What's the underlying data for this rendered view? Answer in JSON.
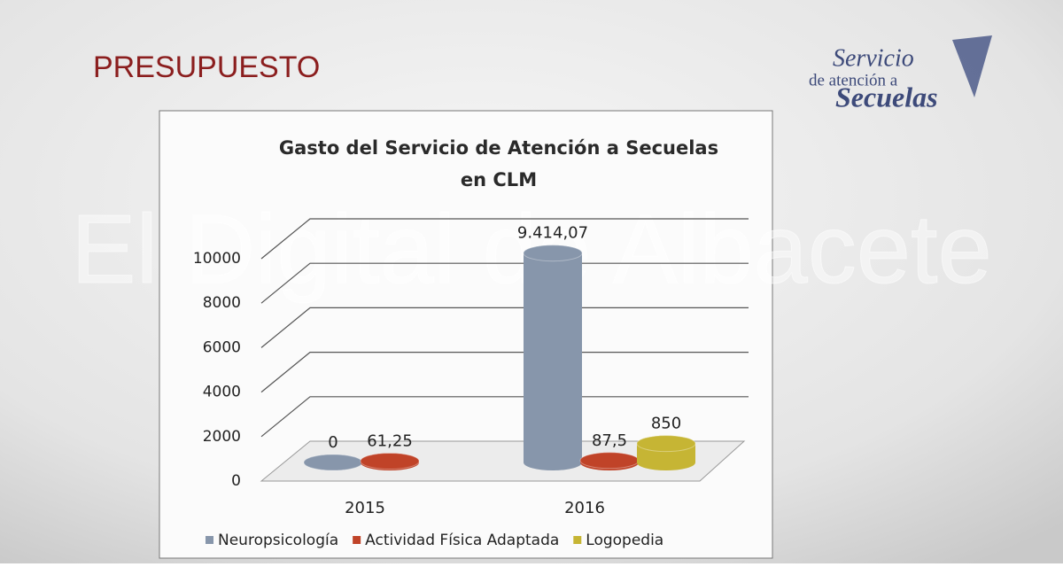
{
  "slide": {
    "title": "PRESUPUESTO",
    "logo": [
      "Servicio",
      "de atención a",
      "Secuelas"
    ],
    "watermark": "El Digital de Albacete"
  },
  "chart_data": {
    "type": "bar3d",
    "title": "Gasto del Servicio de Atención a Secuelas en CLM",
    "categories": [
      "2015",
      "2016"
    ],
    "series": [
      {
        "name": "Neuropsicología",
        "color": "#8796ab",
        "values": [
          0,
          9414.07
        ],
        "value_labels": [
          "0",
          "9.414,07"
        ]
      },
      {
        "name": "Actividad Física Adaptada",
        "color": "#c04328",
        "values": [
          61.25,
          87.5
        ],
        "value_labels": [
          "61,25",
          "87,5"
        ]
      },
      {
        "name": "Logopedia",
        "color": "#c6b534",
        "values": [
          null,
          850
        ],
        "value_labels": [
          null,
          "850"
        ]
      }
    ],
    "ylim": [
      0,
      10000
    ],
    "yticks": [
      0,
      2000,
      4000,
      6000,
      8000,
      10000
    ],
    "grid": true,
    "legend": "bottom"
  }
}
